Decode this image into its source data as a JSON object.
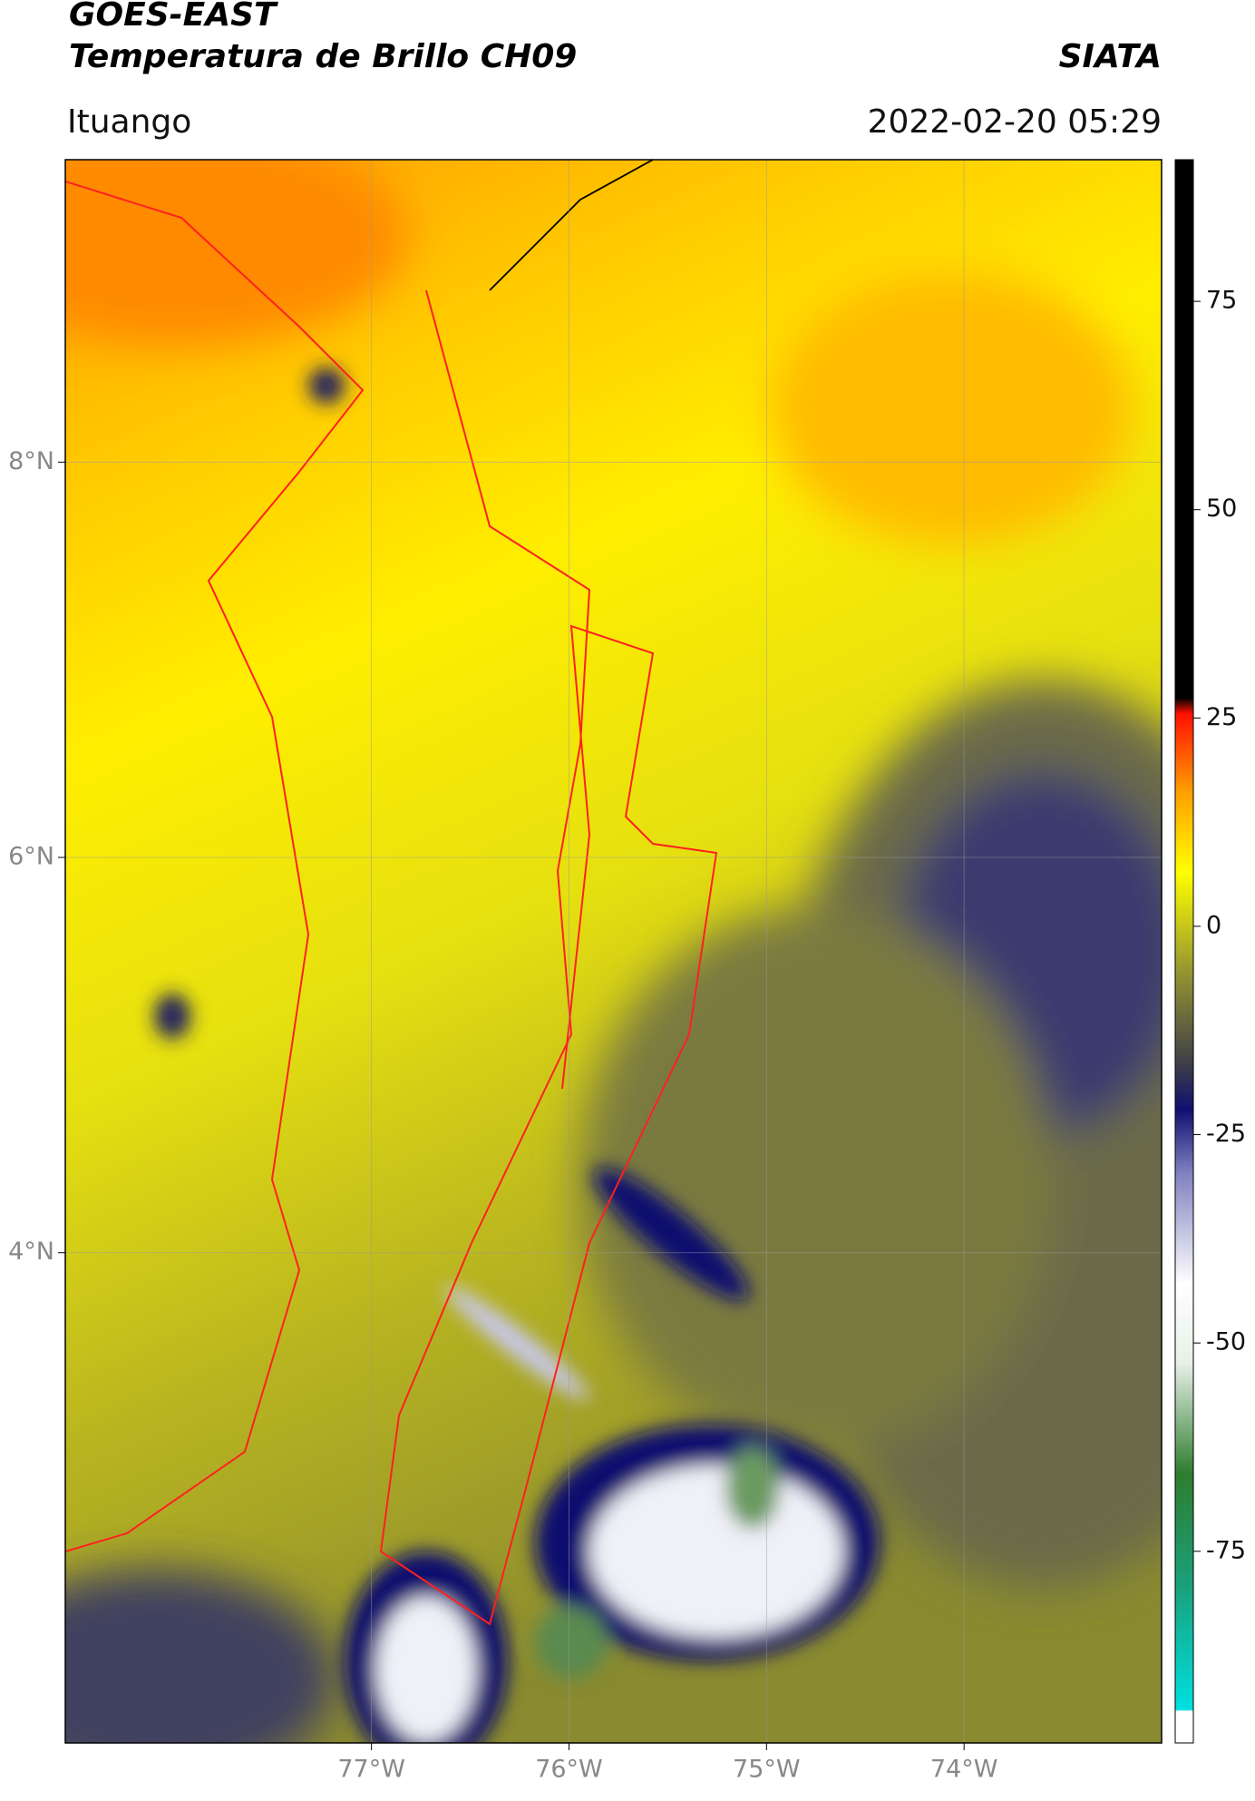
{
  "header": {
    "title": "GOES-EAST",
    "subtitle": "Temperatura de Brillo CH09",
    "source": "SIATA",
    "region": "Ituango",
    "datetime": "2022-02-20 05:29"
  },
  "map": {
    "xlim": [
      -78.55,
      -73.0
    ],
    "ylim": [
      1.52,
      9.53
    ],
    "xticks": [
      {
        "value": -77,
        "label": "77°W"
      },
      {
        "value": -76,
        "label": "76°W"
      },
      {
        "value": -75,
        "label": "75°W"
      },
      {
        "value": -74,
        "label": "74°W"
      }
    ],
    "yticks": [
      {
        "value": 4,
        "label": "4°N"
      },
      {
        "value": 6,
        "label": "6°N"
      },
      {
        "value": 8,
        "label": "8°N"
      }
    ],
    "grid": true
  },
  "colorbar": {
    "lim": [
      -98,
      92
    ],
    "ticks": [
      -75,
      -50,
      -25,
      0,
      25,
      50,
      75
    ]
  }
}
